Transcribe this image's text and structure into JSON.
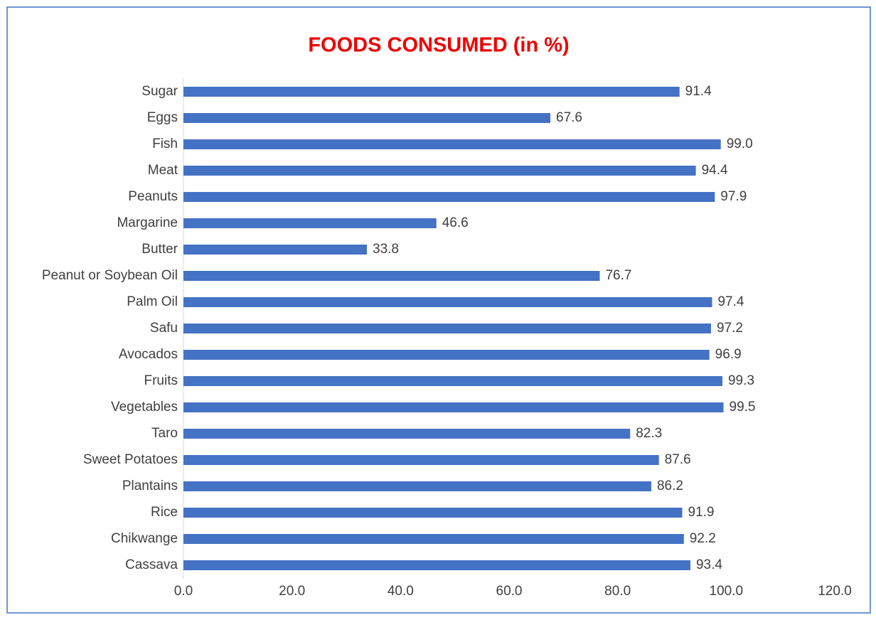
{
  "chart_data": {
    "type": "bar",
    "orientation": "horizontal",
    "title": "FOODS CONSUMED (in %)",
    "title_color": "#ee0000",
    "categories": [
      "Sugar",
      "Eggs",
      "Fish",
      "Meat",
      "Peanuts",
      "Margarine",
      "Butter",
      "Peanut or Soybean Oil",
      "Palm Oil",
      "Safu",
      "Avocados",
      "Fruits",
      "Vegetables",
      "Taro",
      "Sweet Potatoes",
      "Plantains",
      "Rice",
      "Chikwange",
      "Cassava"
    ],
    "values": [
      91.4,
      67.6,
      99.0,
      94.4,
      97.9,
      46.6,
      33.8,
      76.7,
      97.4,
      97.2,
      96.9,
      99.3,
      99.5,
      82.3,
      87.6,
      86.2,
      91.9,
      92.2,
      93.4
    ],
    "value_labels": [
      "91.4",
      "67.6",
      "99.0",
      "94.4",
      "97.9",
      "46.6",
      "33.8",
      "76.7",
      "97.4",
      "97.2",
      "96.9",
      "99.3",
      "99.5",
      "82.3",
      "87.6",
      "86.2",
      "91.9",
      "92.2",
      "93.4"
    ],
    "color": "#4472c4",
    "xlim": [
      0,
      120
    ],
    "xticks": [
      {
        "value": 0,
        "label": "0.0"
      },
      {
        "value": 20,
        "label": "20.0"
      },
      {
        "value": 40,
        "label": "40.0"
      },
      {
        "value": 60,
        "label": "60.0"
      },
      {
        "value": 80,
        "label": "80.0"
      },
      {
        "value": 100,
        "label": "100.0"
      },
      {
        "value": 120,
        "label": "120.0"
      }
    ],
    "grid": false
  }
}
